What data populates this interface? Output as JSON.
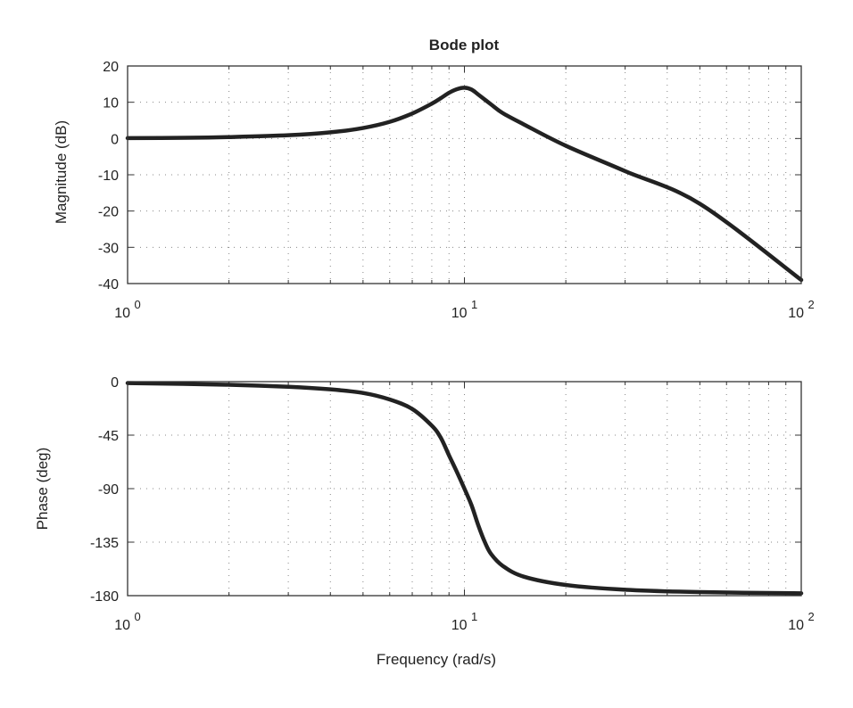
{
  "chart_data": {
    "type": "line",
    "title": "Bode plot",
    "xlabel": "Frequency (rad/s)",
    "x_scale": "log",
    "xlim": [
      1,
      100
    ],
    "x_tick_values": [
      1,
      10,
      100
    ],
    "x_tick_labels": [
      {
        "base": "10",
        "exp": "0"
      },
      {
        "base": "10",
        "exp": "1"
      },
      {
        "base": "10",
        "exp": "2"
      }
    ],
    "grid": true,
    "grid_style": "dotted",
    "panels": [
      {
        "id": "magnitude",
        "ylabel": "Magnitude (dB)",
        "ylim": [
          -40,
          20
        ],
        "y_ticks": [
          20,
          10,
          0,
          -10,
          -20,
          -30,
          -40
        ],
        "y_tick_labels": [
          "20",
          "10",
          "0",
          "-10",
          "-20",
          "-30",
          "-40"
        ],
        "x": [
          1,
          1.5,
          2,
          3,
          4,
          5,
          6,
          7,
          8,
          8.5,
          9,
          9.5,
          10,
          10.5,
          11,
          12,
          13,
          15,
          20,
          30,
          50,
          100
        ],
        "y": [
          0.1,
          0.2,
          0.4,
          0.9,
          1.7,
          2.9,
          4.6,
          6.9,
          9.6,
          11.1,
          12.6,
          13.6,
          14.0,
          13.5,
          12.1,
          9.4,
          7.0,
          3.9,
          -2.0,
          -9.0,
          -18.0,
          -39.0
        ]
      },
      {
        "id": "phase",
        "ylabel": "Phase (deg)",
        "ylim": [
          -180,
          0
        ],
        "y_ticks": [
          0,
          -45,
          -90,
          -135,
          -180
        ],
        "y_tick_labels": [
          "0",
          "-45",
          "-90",
          "-135",
          "-180"
        ],
        "x": [
          1,
          2,
          3,
          4,
          5,
          6,
          7,
          8,
          8.5,
          9,
          9.5,
          10,
          10.5,
          11,
          11.5,
          12,
          13,
          15,
          20,
          30,
          50,
          100
        ],
        "y": [
          -1.2,
          -2.6,
          -4.3,
          -6.5,
          -9.5,
          -15.0,
          -23.0,
          -37.0,
          -47.0,
          -62.0,
          -76.0,
          -90.0,
          -104.0,
          -121.0,
          -135.0,
          -145.0,
          -155.0,
          -164.0,
          -171.0,
          -175.0,
          -177.0,
          -178.0
        ]
      }
    ]
  }
}
